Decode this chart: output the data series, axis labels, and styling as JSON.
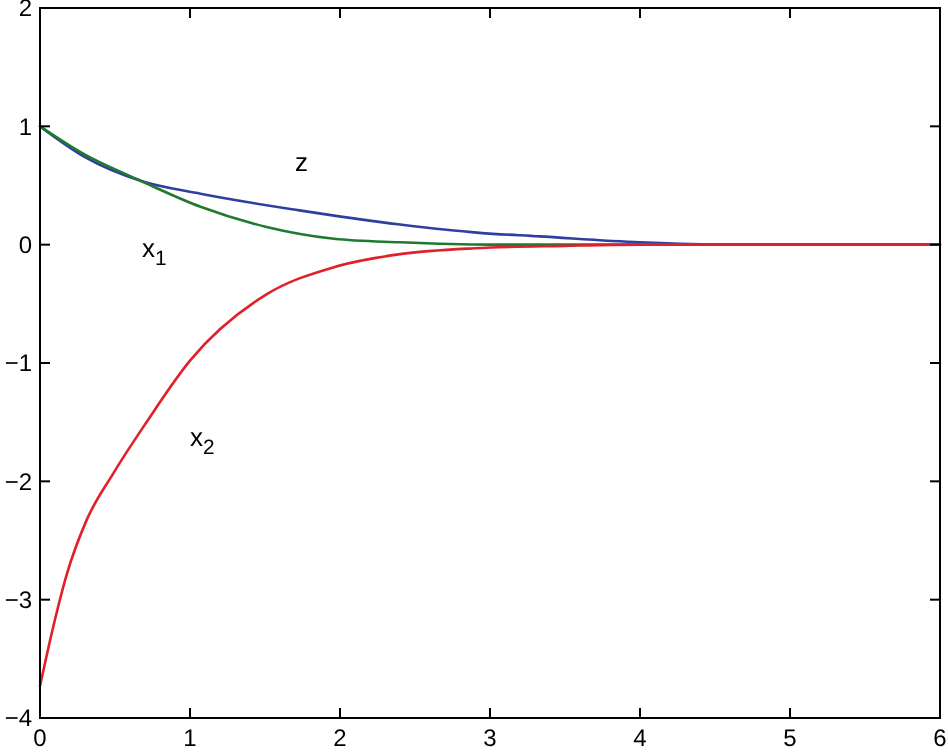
{
  "chart_data": {
    "type": "line",
    "xlim": [
      0,
      6
    ],
    "ylim": [
      -4,
      2
    ],
    "xticks": [
      0,
      1,
      2,
      3,
      4,
      5,
      6
    ],
    "yticks": [
      -4,
      -3,
      -2,
      -1,
      0,
      1,
      2
    ],
    "grid": false,
    "line_style": "solid",
    "marker": "none",
    "series": [
      {
        "name": "z",
        "color": "#2e3fa0",
        "x": [
          0,
          0.3,
          0.67,
          1.07,
          1.73,
          2.4,
          2.93,
          3.33,
          4.0,
          4.6,
          5.0,
          6.0
        ],
        "values": [
          1,
          0.74,
          0.54,
          0.43,
          0.29,
          0.17,
          0.1,
          0.07,
          0.02,
          0.0,
          0.0,
          0.0
        ]
      },
      {
        "name": "x$_{1}$",
        "color": "#1f7a30",
        "x": [
          0,
          0.3,
          0.67,
          1.07,
          1.51,
          1.96,
          2.4,
          3.0,
          4.0,
          6.0
        ],
        "values": [
          1,
          0.76,
          0.54,
          0.32,
          0.15,
          0.05,
          0.02,
          0.0,
          0.0,
          0.0
        ]
      },
      {
        "name": "x$_{2}$",
        "color": "#e0202a",
        "x": [
          0,
          0.09,
          0.18,
          0.31,
          0.49,
          0.71,
          1.0,
          1.51,
          1.96,
          2.4,
          2.9,
          3.5,
          4.0,
          6.0
        ],
        "values": [
          -3.73,
          -3.22,
          -2.78,
          -2.33,
          -1.93,
          -1.5,
          -0.98,
          -0.42,
          -0.19,
          -0.08,
          -0.03,
          -0.01,
          0.0,
          0.0
        ]
      }
    ]
  }
}
